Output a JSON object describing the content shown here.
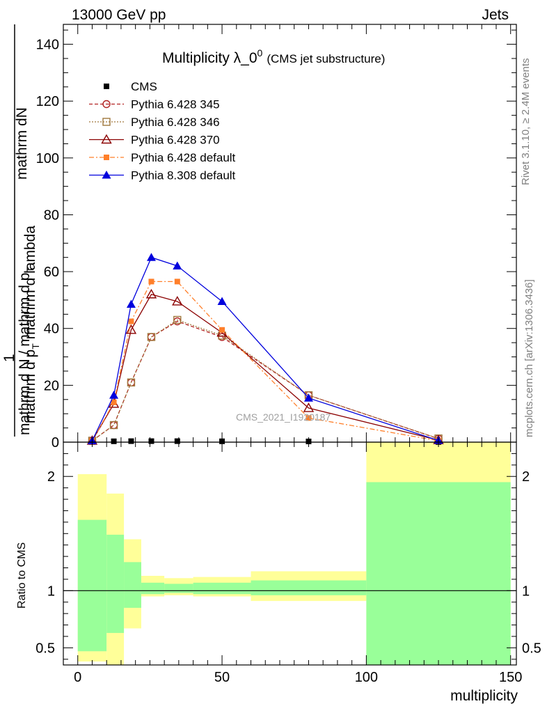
{
  "header": {
    "left": "13000 GeV pp",
    "right": "Jets"
  },
  "side_labels": {
    "rivet": "Rivet 3.1.10, ≥ 2.4M events",
    "mcplots": "mcplots.cern.ch [arXiv:1306.3436]"
  },
  "chart_data": {
    "type": "line",
    "title": "Multiplicity λ_0",
    "title_sup": "0",
    "title_note": "(CMS jet substructure)",
    "watermark": "CMS_2021_I1920187",
    "ylabel_numerator": "mathrm dN",
    "ylabel_numerator_prefix": "1",
    "ylabel_top": "mathrm d p",
    "ylabel_top_sub": "T",
    "ylabel_top_rest": " mathrm d lambda",
    "ylabel_denominator": "mathrm d N / mathrm d p",
    "ylabel_denominator_sub": "T",
    "xlabel": "multiplicity",
    "ratio_ylabel": "Ratio to CMS",
    "xlim": [
      -5,
      152
    ],
    "ylim_main": [
      0,
      147
    ],
    "ylim_ratio": [
      0.35,
      2.3
    ],
    "x_ticks": [
      0,
      50,
      100,
      150
    ],
    "y_ticks_main": [
      0,
      20,
      40,
      60,
      80,
      100,
      120,
      140
    ],
    "y_ticks_ratio": [
      0.5,
      1,
      2
    ],
    "x": [
      5,
      12.5,
      18.5,
      25.5,
      34.5,
      50,
      80,
      125
    ],
    "series": [
      {
        "name": "CMS",
        "color": "#000000",
        "marker": "filled-square",
        "line": "none",
        "values": [
          0.1,
          0.3,
          0.35,
          0.35,
          0.35,
          0.3,
          0.25,
          0.05
        ]
      },
      {
        "name": "Pythia 6.428 345",
        "color": "#b22222",
        "marker": "open-circle",
        "line": "dashed",
        "values": [
          0.5,
          6,
          21,
          37,
          42.5,
          37,
          16.5,
          1.2
        ]
      },
      {
        "name": "Pythia 6.428 346",
        "color": "#a0783c",
        "marker": "open-square",
        "line": "dotted",
        "values": [
          0.5,
          6,
          21,
          37,
          43,
          37.5,
          16.5,
          1.3
        ]
      },
      {
        "name": "Pythia 6.428 370",
        "color": "#8b0000",
        "marker": "open-triangle",
        "line": "solid",
        "values": [
          0.5,
          13.5,
          39.5,
          52,
          49.5,
          38.5,
          12,
          0.7
        ]
      },
      {
        "name": "Pythia 6.428 default",
        "color": "#ff7f2a",
        "marker": "filled-square",
        "line": "dashdot",
        "values": [
          0.5,
          14,
          42.5,
          56.5,
          56.5,
          39.5,
          8.5,
          0.5
        ]
      },
      {
        "name": "Pythia 8.308 default",
        "color": "#0000dd",
        "marker": "filled-triangle",
        "line": "solid",
        "values": [
          0.5,
          16.5,
          48.5,
          65,
          62,
          49.5,
          15.5,
          0.6
        ]
      }
    ],
    "ratio_bands": [
      {
        "x0": 0,
        "x1": 10,
        "yellow": [
          0.38,
          2.02
        ],
        "green": [
          0.47,
          1.62
        ]
      },
      {
        "x0": 10,
        "x1": 16,
        "yellow": [
          0.35,
          1.85
        ],
        "green": [
          0.63,
          1.49
        ]
      },
      {
        "x0": 16,
        "x1": 22,
        "yellow": [
          0.67,
          1.45
        ],
        "green": [
          0.85,
          1.25
        ]
      },
      {
        "x0": 22,
        "x1": 30,
        "yellow": [
          0.95,
          1.13
        ],
        "green": [
          0.97,
          1.07
        ]
      },
      {
        "x0": 30,
        "x1": 40,
        "yellow": [
          0.96,
          1.11
        ],
        "green": [
          0.98,
          1.06
        ]
      },
      {
        "x0": 40,
        "x1": 60,
        "yellow": [
          0.95,
          1.12
        ],
        "green": [
          0.97,
          1.07
        ]
      },
      {
        "x0": 60,
        "x1": 100,
        "yellow": [
          0.91,
          1.17
        ],
        "green": [
          0.96,
          1.09
        ]
      },
      {
        "x0": 100,
        "x1": 150,
        "yellow": [
          0.35,
          2.3
        ],
        "green": [
          0.35,
          1.95
        ]
      }
    ]
  }
}
